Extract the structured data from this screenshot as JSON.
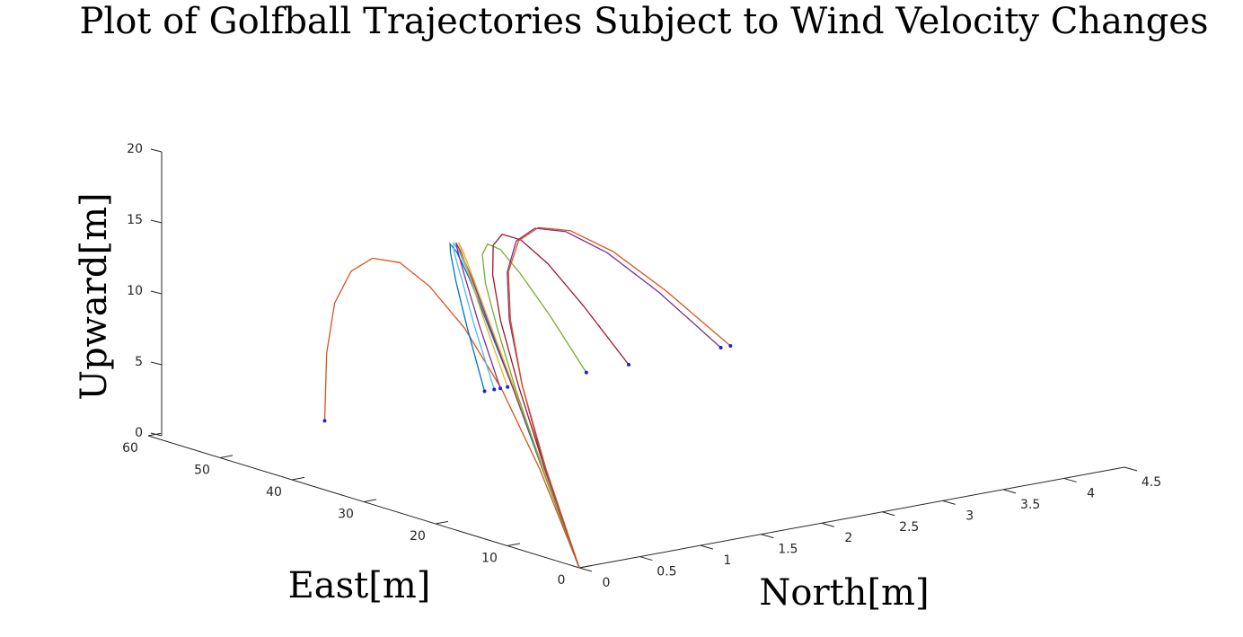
{
  "chart_data": {
    "type": "line3d",
    "title": "Plot of Golfball Trajectories Subject to Wind Velocity Changes",
    "xlabel": "East[m]",
    "ylabel": "North[m]",
    "zlabel": "Upward[m]",
    "xlim": [
      0,
      60
    ],
    "ylim": [
      0,
      4.5
    ],
    "zlim": [
      0,
      20
    ],
    "xticks": [
      0,
      10,
      20,
      30,
      40,
      50,
      60
    ],
    "yticks": [
      0,
      0.5,
      1,
      1.5,
      2,
      2.5,
      3,
      3.5,
      4,
      4.5
    ],
    "zticks": [
      0,
      5,
      10,
      15,
      20
    ],
    "end_marker_color": "#2020d0",
    "x": [
      0,
      5.5,
      11,
      16.5,
      22,
      27.5,
      33,
      38.5,
      44,
      49.5,
      55
    ],
    "series": [
      {
        "color": "#D95319",
        "y": [
          0,
          0,
          0.01,
          0.03,
          0.07,
          0.15,
          0.25,
          0.4,
          0.59,
          0.85,
          1.16
        ],
        "z": [
          0,
          6.1,
          10.9,
          14.3,
          16.3,
          17,
          16.3,
          14.3,
          10.9,
          6.1,
          0
        ]
      },
      {
        "color": "#0072BD",
        "y": [
          0,
          0.02,
          0.1,
          0.22,
          0.4,
          0.62,
          0.89,
          1.22,
          1.59,
          2.01,
          2.48
        ],
        "z": [
          0,
          6.1,
          10.9,
          14.3,
          16.3,
          17,
          16.3,
          14.3,
          10.9,
          6.1,
          0
        ]
      },
      {
        "color": "#4DBEEE",
        "y": [
          0,
          0.03,
          0.1,
          0.23,
          0.41,
          0.64,
          0.92,
          1.25,
          1.64,
          2.07,
          2.56
        ],
        "z": [
          0,
          6.1,
          10.9,
          14.3,
          16.3,
          17,
          16.3,
          14.3,
          10.9,
          6.1,
          0
        ]
      },
      {
        "color": "#7E2F8E",
        "y": [
          0,
          0.03,
          0.1,
          0.23,
          0.42,
          0.65,
          0.94,
          1.28,
          1.67,
          2.11,
          2.61
        ],
        "z": [
          0,
          6.1,
          10.9,
          14.3,
          16.3,
          17,
          16.3,
          14.3,
          10.9,
          6.1,
          0
        ]
      },
      {
        "color": "#EDB120",
        "y": [
          0,
          0.03,
          0.11,
          0.24,
          0.43,
          0.67,
          0.96,
          1.31,
          1.71,
          2.16,
          2.67
        ],
        "z": [
          0,
          6.1,
          10.9,
          14.3,
          16.3,
          17,
          16.3,
          14.3,
          10.9,
          6.1,
          0
        ]
      },
      {
        "color": "#77AC30",
        "y": [
          0,
          0.03,
          0.13,
          0.3,
          0.53,
          0.83,
          1.2,
          1.63,
          2.12,
          2.69,
          3.32
        ],
        "z": [
          0,
          5.9,
          10.6,
          13.9,
          15.8,
          16.5,
          15.8,
          13.9,
          10.6,
          5.9,
          0
        ]
      },
      {
        "color": "#A2142F",
        "y": [
          0,
          0.04,
          0.15,
          0.33,
          0.59,
          0.92,
          1.32,
          1.8,
          2.35,
          2.97,
          3.67
        ],
        "z": [
          0,
          6.1,
          10.9,
          14.3,
          16.3,
          17,
          16.3,
          14.3,
          10.9,
          6.1,
          0
        ]
      },
      {
        "color": "#7E2F8E",
        "y": [
          0,
          0.04,
          0.18,
          0.4,
          0.71,
          1.11,
          1.59,
          2.17,
          2.84,
          3.59,
          4.43
        ],
        "z": [
          0,
          6.1,
          10.9,
          14.3,
          16.3,
          17,
          16.3,
          14.3,
          10.9,
          6.1,
          0
        ]
      },
      {
        "color": "#D95319",
        "y": [
          0,
          0.05,
          0.18,
          0.41,
          0.72,
          1.13,
          1.62,
          2.21,
          2.89,
          3.65,
          4.51
        ],
        "z": [
          0,
          6.1,
          10.9,
          14.3,
          16.3,
          17,
          16.3,
          14.3,
          10.9,
          6.1,
          0
        ]
      }
    ]
  }
}
